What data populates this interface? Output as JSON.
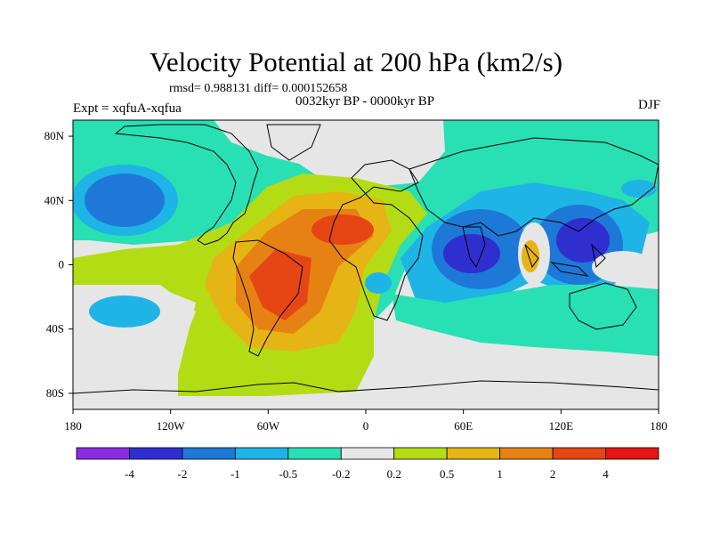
{
  "header": {
    "title": "Velocity Potential at 200 hPa (km2/s)",
    "stats": "rmsd= 0.988131 diff= 0.000152658",
    "subtitle": "0032kyr BP - 0000kyr BP",
    "experiment": "Expt = xqfuA-xqfua",
    "season": "DJF"
  },
  "axes": {
    "lat_ticks": [
      {
        "value": 80,
        "label": "80N"
      },
      {
        "value": 40,
        "label": "40N"
      },
      {
        "value": 0,
        "label": "0"
      },
      {
        "value": -40,
        "label": "40S"
      },
      {
        "value": -80,
        "label": "80S"
      }
    ],
    "lon_ticks": [
      {
        "value": -180,
        "label": "180"
      },
      {
        "value": -120,
        "label": "120W"
      },
      {
        "value": -60,
        "label": "60W"
      },
      {
        "value": 0,
        "label": "0"
      },
      {
        "value": 60,
        "label": "60E"
      },
      {
        "value": 120,
        "label": "120E"
      },
      {
        "value": 180,
        "label": "180"
      }
    ]
  },
  "colorbar": {
    "colors": [
      "#8a2be2",
      "#2f2fd0",
      "#1e78d8",
      "#1eb4e6",
      "#28e0b4",
      "#e6e6e6",
      "#b4dc14",
      "#e6b414",
      "#e68214",
      "#e64614",
      "#e61414"
    ],
    "labels": [
      "-4",
      "-2",
      "-1",
      "-0.5",
      "-0.2",
      "0.2",
      "0.5",
      "1",
      "2",
      "4"
    ]
  }
}
